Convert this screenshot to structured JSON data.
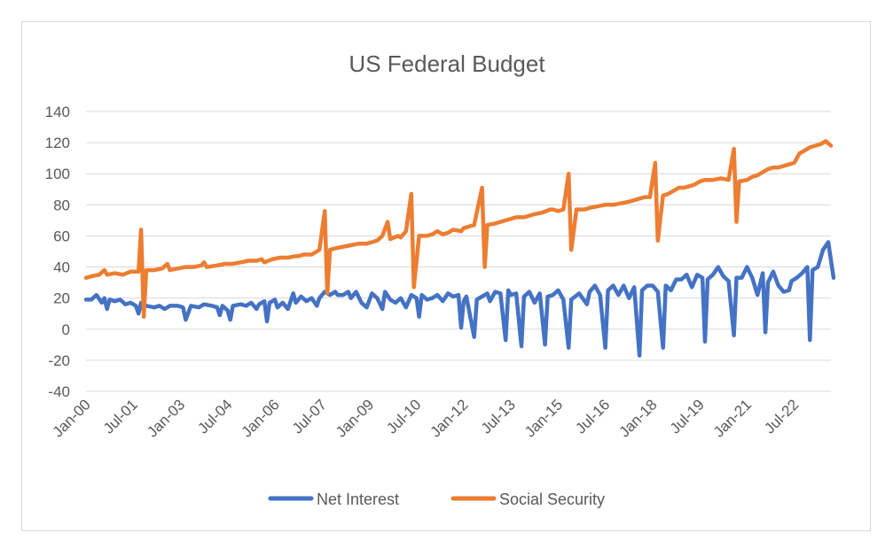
{
  "chart_data": {
    "type": "line",
    "title": "US Federal Budget",
    "xlabel": "",
    "ylabel": "",
    "ylim": [
      -40,
      140
    ],
    "y_ticks": [
      -40,
      -20,
      0,
      20,
      40,
      60,
      80,
      100,
      120,
      140
    ],
    "x_tick_labels": [
      "Jan-00",
      "Jul-01",
      "Jan-03",
      "Jul-04",
      "Jan-06",
      "Jul-07",
      "Jan-09",
      "Jul-10",
      "Jan-12",
      "Jul-13",
      "Jan-15",
      "Jul-16",
      "Jan-18",
      "Jul-19",
      "Jan-21",
      "Jul-22"
    ],
    "x_range": [
      "2000-01",
      "2023-09"
    ],
    "grid": true,
    "legend_position": "bottom",
    "colors": {
      "net_interest": "#4472C4",
      "social_security": "#ED7D31"
    },
    "series": [
      {
        "name": "Net Interest",
        "color": "#4472C4",
        "points": [
          [
            "2000-01",
            19
          ],
          [
            "2000-03",
            19
          ],
          [
            "2000-05",
            22
          ],
          [
            "2000-07",
            17
          ],
          [
            "2000-08",
            20
          ],
          [
            "2000-09",
            13
          ],
          [
            "2000-10",
            19
          ],
          [
            "2000-12",
            18
          ],
          [
            "2001-02",
            19
          ],
          [
            "2001-04",
            16
          ],
          [
            "2001-06",
            17
          ],
          [
            "2001-08",
            15
          ],
          [
            "2001-09",
            10
          ],
          [
            "2001-10",
            17
          ],
          [
            "2001-12",
            15
          ],
          [
            "2002-03",
            14
          ],
          [
            "2002-05",
            15
          ],
          [
            "2002-07",
            13
          ],
          [
            "2002-09",
            15
          ],
          [
            "2002-12",
            15
          ],
          [
            "2003-02",
            14
          ],
          [
            "2003-03",
            6
          ],
          [
            "2003-05",
            15
          ],
          [
            "2003-08",
            14
          ],
          [
            "2003-10",
            16
          ],
          [
            "2004-01",
            15
          ],
          [
            "2004-03",
            14
          ],
          [
            "2004-04",
            9
          ],
          [
            "2004-05",
            15
          ],
          [
            "2004-07",
            12
          ],
          [
            "2004-08",
            6
          ],
          [
            "2004-09",
            15
          ],
          [
            "2004-12",
            16
          ],
          [
            "2005-02",
            15
          ],
          [
            "2005-04",
            17
          ],
          [
            "2005-06",
            13
          ],
          [
            "2005-07",
            16
          ],
          [
            "2005-09",
            18
          ],
          [
            "2005-10",
            5
          ],
          [
            "2005-11",
            17
          ],
          [
            "2006-01",
            19
          ],
          [
            "2006-02",
            14
          ],
          [
            "2006-04",
            17
          ],
          [
            "2006-06",
            13
          ],
          [
            "2006-08",
            23
          ],
          [
            "2006-09",
            17
          ],
          [
            "2006-11",
            21
          ],
          [
            "2007-01",
            18
          ],
          [
            "2007-03",
            20
          ],
          [
            "2007-05",
            15
          ],
          [
            "2007-06",
            20
          ],
          [
            "2007-08",
            24
          ],
          [
            "2007-10",
            22
          ],
          [
            "2007-12",
            24
          ],
          [
            "2008-01",
            22
          ],
          [
            "2008-03",
            22
          ],
          [
            "2008-05",
            24
          ],
          [
            "2008-06",
            20
          ],
          [
            "2008-08",
            24
          ],
          [
            "2008-10",
            17
          ],
          [
            "2008-12",
            14
          ],
          [
            "2009-02",
            23
          ],
          [
            "2009-04",
            20
          ],
          [
            "2009-06",
            13
          ],
          [
            "2009-07",
            24
          ],
          [
            "2009-09",
            19
          ],
          [
            "2009-11",
            17
          ],
          [
            "2010-01",
            20
          ],
          [
            "2010-03",
            14
          ],
          [
            "2010-05",
            22
          ],
          [
            "2010-07",
            20
          ],
          [
            "2010-08",
            8
          ],
          [
            "2010-09",
            22
          ],
          [
            "2010-11",
            19
          ],
          [
            "2011-01",
            20
          ],
          [
            "2011-03",
            22
          ],
          [
            "2011-05",
            18
          ],
          [
            "2011-07",
            23
          ],
          [
            "2011-09",
            21
          ],
          [
            "2011-11",
            22
          ],
          [
            "2011-12",
            1
          ],
          [
            "2012-01",
            18
          ],
          [
            "2012-02",
            21
          ],
          [
            "2012-05",
            -5
          ],
          [
            "2012-06",
            19
          ],
          [
            "2012-08",
            21
          ],
          [
            "2012-10",
            23
          ],
          [
            "2012-11",
            18
          ],
          [
            "2013-01",
            24
          ],
          [
            "2013-03",
            23
          ],
          [
            "2013-05",
            -7
          ],
          [
            "2013-06",
            25
          ],
          [
            "2013-07",
            22
          ],
          [
            "2013-09",
            23
          ],
          [
            "2013-11",
            -11
          ],
          [
            "2013-12",
            21
          ],
          [
            "2014-02",
            24
          ],
          [
            "2014-04",
            17
          ],
          [
            "2014-06",
            23
          ],
          [
            "2014-08",
            -10
          ],
          [
            "2014-09",
            21
          ],
          [
            "2014-11",
            22
          ],
          [
            "2015-01",
            25
          ],
          [
            "2015-03",
            19
          ],
          [
            "2015-05",
            -12
          ],
          [
            "2015-06",
            19
          ],
          [
            "2015-09",
            23
          ],
          [
            "2015-12",
            16
          ],
          [
            "2016-01",
            24
          ],
          [
            "2016-03",
            28
          ],
          [
            "2016-05",
            22
          ],
          [
            "2016-07",
            -12
          ],
          [
            "2016-08",
            25
          ],
          [
            "2016-10",
            28
          ],
          [
            "2016-12",
            22
          ],
          [
            "2017-02",
            28
          ],
          [
            "2017-04",
            20
          ],
          [
            "2017-06",
            27
          ],
          [
            "2017-08",
            -17
          ],
          [
            "2017-09",
            25
          ],
          [
            "2017-11",
            28
          ],
          [
            "2018-01",
            28
          ],
          [
            "2018-03",
            24
          ],
          [
            "2018-05",
            -12
          ],
          [
            "2018-06",
            28
          ],
          [
            "2018-08",
            25
          ],
          [
            "2018-10",
            32
          ],
          [
            "2018-12",
            32
          ],
          [
            "2019-02",
            35
          ],
          [
            "2019-04",
            27
          ],
          [
            "2019-06",
            35
          ],
          [
            "2019-08",
            33
          ],
          [
            "2019-09",
            -8
          ],
          [
            "2019-10",
            32
          ],
          [
            "2019-12",
            35
          ],
          [
            "2020-02",
            40
          ],
          [
            "2020-04",
            34
          ],
          [
            "2020-06",
            31
          ],
          [
            "2020-08",
            -4
          ],
          [
            "2020-09",
            33
          ],
          [
            "2020-11",
            33
          ],
          [
            "2021-01",
            40
          ],
          [
            "2021-03",
            33
          ],
          [
            "2021-05",
            22
          ],
          [
            "2021-07",
            36
          ],
          [
            "2021-08",
            -2
          ],
          [
            "2021-09",
            30
          ],
          [
            "2021-11",
            37
          ],
          [
            "2022-01",
            28
          ],
          [
            "2022-03",
            24
          ],
          [
            "2022-05",
            25
          ],
          [
            "2022-06",
            31
          ],
          [
            "2022-08",
            33
          ],
          [
            "2022-10",
            36
          ],
          [
            "2022-12",
            40
          ],
          [
            "2023-01",
            -7
          ],
          [
            "2023-02",
            38
          ],
          [
            "2023-04",
            40
          ],
          [
            "2023-06",
            51
          ],
          [
            "2023-08",
            56
          ],
          [
            "2023-10",
            33
          ]
        ]
      },
      {
        "name": "Social Security",
        "color": "#ED7D31",
        "points": [
          [
            "2000-01",
            33
          ],
          [
            "2000-03",
            34
          ],
          [
            "2000-06",
            35
          ],
          [
            "2000-08",
            38
          ],
          [
            "2000-09",
            35
          ],
          [
            "2000-12",
            36
          ],
          [
            "2001-03",
            35
          ],
          [
            "2001-06",
            37
          ],
          [
            "2001-09",
            37
          ],
          [
            "2001-10",
            64
          ],
          [
            "2001-11",
            8
          ],
          [
            "2001-12",
            38
          ],
          [
            "2002-03",
            38
          ],
          [
            "2002-06",
            39
          ],
          [
            "2002-08",
            42
          ],
          [
            "2002-09",
            38
          ],
          [
            "2002-12",
            39
          ],
          [
            "2003-03",
            40
          ],
          [
            "2003-06",
            40
          ],
          [
            "2003-09",
            41
          ],
          [
            "2003-10",
            43
          ],
          [
            "2003-11",
            40
          ],
          [
            "2004-03",
            41
          ],
          [
            "2004-06",
            42
          ],
          [
            "2004-09",
            42
          ],
          [
            "2004-12",
            43
          ],
          [
            "2005-03",
            44
          ],
          [
            "2005-06",
            44
          ],
          [
            "2005-08",
            45
          ],
          [
            "2005-09",
            43
          ],
          [
            "2005-12",
            45
          ],
          [
            "2006-03",
            46
          ],
          [
            "2006-06",
            46
          ],
          [
            "2006-09",
            47
          ],
          [
            "2006-10",
            47
          ],
          [
            "2006-12",
            48
          ],
          [
            "2007-03",
            48
          ],
          [
            "2007-05",
            50
          ],
          [
            "2007-06",
            51
          ],
          [
            "2007-08",
            76
          ],
          [
            "2007-09",
            23
          ],
          [
            "2007-10",
            51
          ],
          [
            "2007-12",
            52
          ],
          [
            "2008-03",
            53
          ],
          [
            "2008-06",
            54
          ],
          [
            "2008-09",
            55
          ],
          [
            "2008-12",
            55
          ],
          [
            "2009-02",
            56
          ],
          [
            "2009-04",
            57
          ],
          [
            "2009-06",
            60
          ],
          [
            "2009-08",
            69
          ],
          [
            "2009-09",
            58
          ],
          [
            "2009-12",
            60
          ],
          [
            "2010-01",
            59
          ],
          [
            "2010-03",
            63
          ],
          [
            "2010-05",
            87
          ],
          [
            "2010-06",
            27
          ],
          [
            "2010-08",
            60
          ],
          [
            "2010-11",
            60
          ],
          [
            "2011-01",
            61
          ],
          [
            "2011-03",
            63
          ],
          [
            "2011-05",
            61
          ],
          [
            "2011-07",
            62
          ],
          [
            "2011-09",
            64
          ],
          [
            "2011-12",
            63
          ],
          [
            "2012-01",
            65
          ],
          [
            "2012-03",
            66
          ],
          [
            "2012-05",
            67
          ],
          [
            "2012-08",
            91
          ],
          [
            "2012-09",
            40
          ],
          [
            "2012-10",
            67
          ],
          [
            "2013-01",
            68
          ],
          [
            "2013-03",
            69
          ],
          [
            "2013-05",
            70
          ],
          [
            "2013-07",
            71
          ],
          [
            "2013-09",
            72
          ],
          [
            "2013-12",
            72
          ],
          [
            "2014-02",
            73
          ],
          [
            "2014-04",
            74
          ],
          [
            "2014-07",
            75
          ],
          [
            "2014-10",
            77
          ],
          [
            "2014-11",
            77
          ],
          [
            "2015-01",
            76
          ],
          [
            "2015-03",
            77
          ],
          [
            "2015-05",
            100
          ],
          [
            "2015-06",
            51
          ],
          [
            "2015-08",
            77
          ],
          [
            "2015-11",
            77
          ],
          [
            "2016-01",
            78
          ],
          [
            "2016-04",
            79
          ],
          [
            "2016-07",
            80
          ],
          [
            "2016-10",
            80
          ],
          [
            "2017-01",
            81
          ],
          [
            "2017-04",
            82
          ],
          [
            "2017-06",
            83
          ],
          [
            "2017-08",
            84
          ],
          [
            "2017-10",
            85
          ],
          [
            "2017-12",
            85
          ],
          [
            "2018-02",
            107
          ],
          [
            "2018-03",
            57
          ],
          [
            "2018-05",
            86
          ],
          [
            "2018-07",
            87
          ],
          [
            "2018-09",
            89
          ],
          [
            "2018-11",
            91
          ],
          [
            "2019-01",
            91
          ],
          [
            "2019-03",
            92
          ],
          [
            "2019-05",
            93
          ],
          [
            "2019-07",
            95
          ],
          [
            "2019-09",
            96
          ],
          [
            "2019-12",
            96
          ],
          [
            "2020-03",
            97
          ],
          [
            "2020-06",
            96
          ],
          [
            "2020-08",
            116
          ],
          [
            "2020-09",
            69
          ],
          [
            "2020-10",
            95
          ],
          [
            "2021-01",
            96
          ],
          [
            "2021-03",
            98
          ],
          [
            "2021-05",
            99
          ],
          [
            "2021-07",
            101
          ],
          [
            "2021-09",
            103
          ],
          [
            "2021-11",
            104
          ],
          [
            "2022-01",
            104
          ],
          [
            "2022-03",
            105
          ],
          [
            "2022-05",
            106
          ],
          [
            "2022-07",
            107
          ],
          [
            "2022-09",
            113
          ],
          [
            "2022-11",
            115
          ],
          [
            "2023-01",
            117
          ],
          [
            "2023-03",
            118
          ],
          [
            "2023-05",
            119
          ],
          [
            "2023-07",
            121
          ],
          [
            "2023-09",
            118
          ]
        ]
      }
    ]
  }
}
